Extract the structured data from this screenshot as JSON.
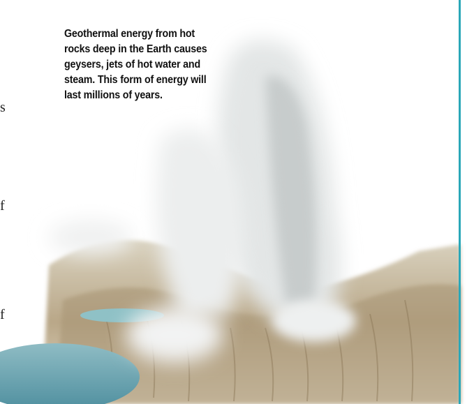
{
  "caption": {
    "lines": [
      "Geothermal energy from hot",
      "rocks deep in the Earth causes",
      "geysers, jets of hot water and",
      "steam. This form of energy will",
      "last millions of years."
    ]
  },
  "margin_fragments": [
    "s",
    "f",
    "f"
  ]
}
